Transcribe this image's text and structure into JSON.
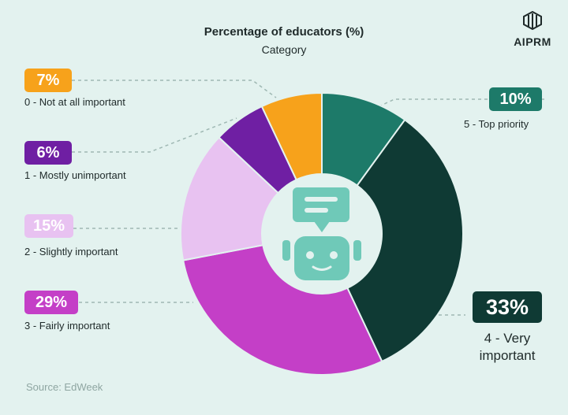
{
  "title": "Percentage of educators (%)",
  "subtitle": "Category",
  "brand": "AIPRM",
  "source": "Source: EdWeek",
  "chart_data": {
    "type": "pie",
    "donut": true,
    "title": "Percentage of educators (%)",
    "subtitle": "Category",
    "legend": "labels around chart",
    "slices": [
      {
        "label": "5 - Top priority",
        "value": 10,
        "display": "10%",
        "color": "#1d7a69"
      },
      {
        "label": "4 - Very important",
        "value": 33,
        "display": "33%",
        "color": "#0f3a34"
      },
      {
        "label": "3 - Fairly important",
        "value": 29,
        "display": "29%",
        "color": "#c43fc7"
      },
      {
        "label": "2 - Slightly important",
        "value": 15,
        "display": "15%",
        "color": "#e8c2f1"
      },
      {
        "label": "1 - Mostly unimportant",
        "value": 6,
        "display": "6%",
        "color": "#6f1fa3"
      },
      {
        "label": "0 - Not at all important",
        "value": 7,
        "display": "7%",
        "color": "#f7a21b"
      }
    ]
  }
}
